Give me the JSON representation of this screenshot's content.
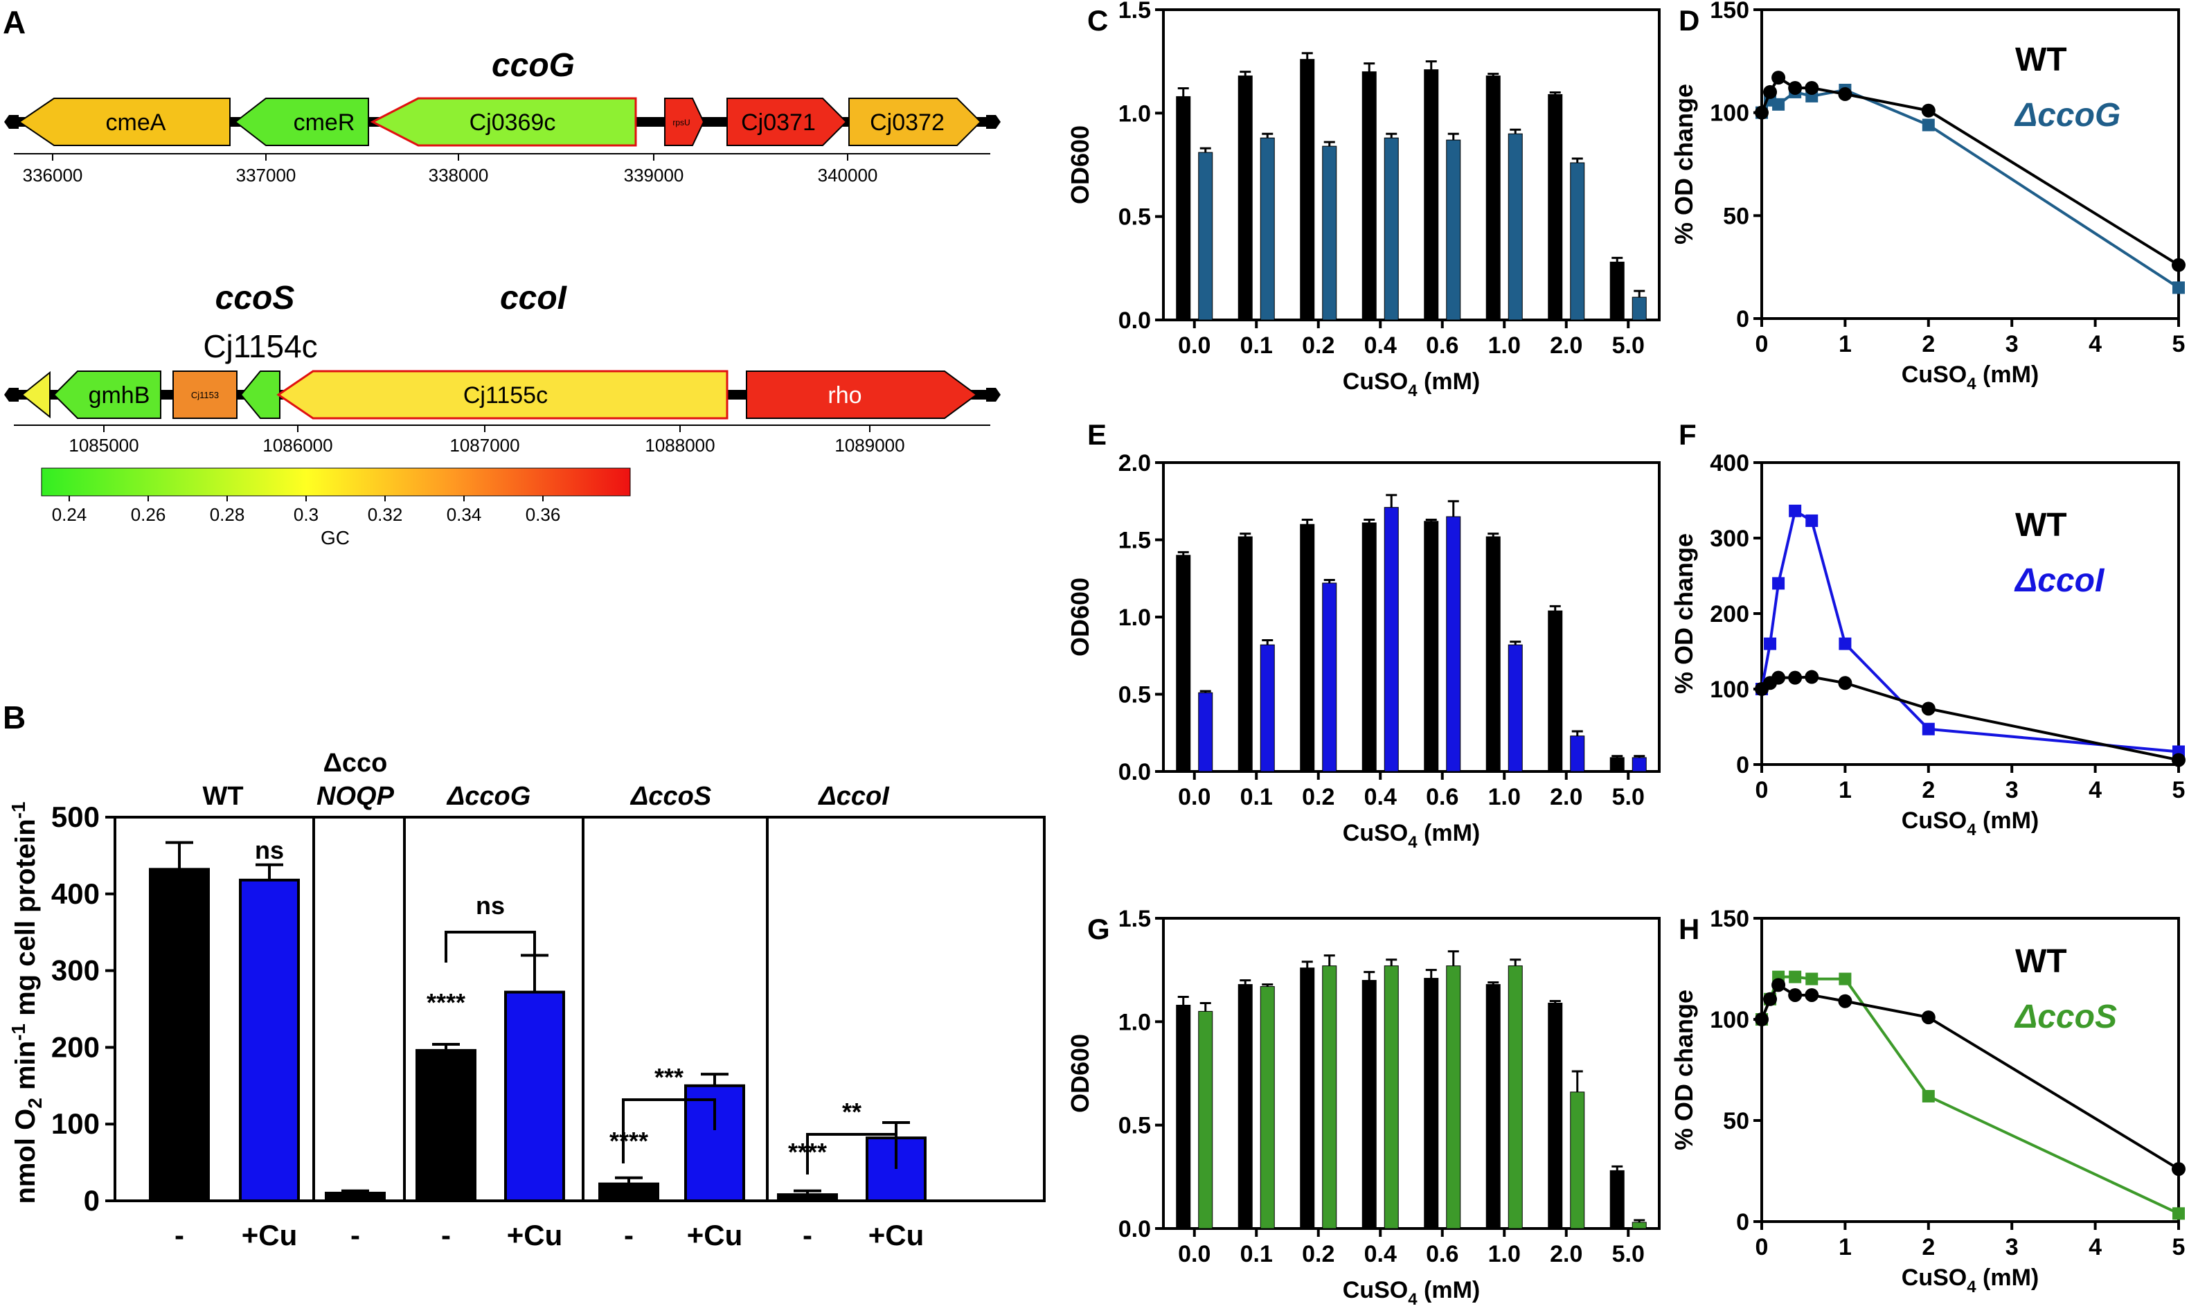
{
  "colors": {
    "black": "#000000",
    "cu_blue": "#1010ee",
    "ccoG_blue": "#1f5e8a",
    "ccoI_blue": "#1414e0",
    "ccoS_green": "#3d9a2a",
    "gc_low": "#33ee22",
    "gc_mid": "#ffff22",
    "gc_high": "#ee1111"
  },
  "panel_A": {
    "label": "A",
    "region1": {
      "title": "ccoG",
      "genes": [
        {
          "name": "cmeA",
          "color": "#f5c21a"
        },
        {
          "name": "cmeR",
          "color": "#5ee82b"
        },
        {
          "name": "Cj0369c",
          "color": "#8ef032"
        },
        {
          "name": "rpsU",
          "color": "#ee2a1a"
        },
        {
          "name": "Cj0371",
          "color": "#ee2a1a"
        },
        {
          "name": "Cj0372",
          "color": "#f5b820"
        }
      ],
      "ticks": [
        "336000",
        "337000",
        "338000",
        "339000",
        "340000"
      ]
    },
    "region2": {
      "titles": [
        "ccoS",
        "Cj1154c",
        "ccoI"
      ],
      "genes": [
        {
          "name": "",
          "color": "#f2f23a"
        },
        {
          "name": "gmhB",
          "color": "#5ee82b"
        },
        {
          "name": "Cj1153",
          "color": "#f08a2a"
        },
        {
          "name": "",
          "color": "#5ee82b"
        },
        {
          "name": "Cj1155c",
          "color": "#fbe33c"
        },
        {
          "name": "rho",
          "color": "#ee2a1a"
        }
      ],
      "ticks": [
        "1085000",
        "1086000",
        "1087000",
        "1088000",
        "1089000"
      ]
    },
    "gc_scale": {
      "ticks": [
        "0.24",
        "0.26",
        "0.28",
        "0.3",
        "0.32",
        "0.34",
        "0.36"
      ],
      "label": "GC"
    }
  },
  "panel_B": {
    "label": "B",
    "groups": [
      "WT",
      "Δcco",
      "NOQP",
      "ΔccoG",
      "ΔccoS",
      "ΔccoI"
    ],
    "xlabels": [
      "-",
      "+Cu",
      "-",
      "-",
      "+Cu",
      "-",
      "+Cu",
      "-",
      "+Cu"
    ],
    "significance": [
      "ns",
      "ns",
      "****",
      "***",
      "****",
      "**",
      "****"
    ],
    "ylabel_parts": [
      "nmol O",
      "2",
      " min",
      "-1",
      " mg cell protein",
      "-1"
    ]
  },
  "chart_data": [
    {
      "id": "B",
      "type": "bar",
      "categories": [
        "WT -",
        "WT +Cu",
        "ΔccoNOQP -",
        "ΔccoG -",
        "ΔccoG +Cu",
        "ΔccoS -",
        "ΔccoS +Cu",
        "ΔccoI -",
        "ΔccoI +Cu"
      ],
      "values": [
        432,
        418,
        10,
        196,
        272,
        22,
        150,
        8,
        82
      ],
      "errors": [
        35,
        20,
        3,
        8,
        48,
        8,
        15,
        5,
        20
      ],
      "ylim": [
        0,
        500
      ],
      "yticks": [
        "0",
        "100",
        "200",
        "300",
        "400",
        "500"
      ],
      "ylabel": "nmol O2 min-1 mg cell protein-1"
    },
    {
      "id": "C",
      "type": "bar",
      "label": "C",
      "categories": [
        "0.0",
        "0.1",
        "0.2",
        "0.4",
        "0.6",
        "1.0",
        "2.0",
        "5.0"
      ],
      "series": [
        {
          "name": "WT",
          "values": [
            1.08,
            1.18,
            1.26,
            1.2,
            1.21,
            1.18,
            1.09,
            0.28
          ],
          "errors": [
            0.04,
            0.02,
            0.03,
            0.04,
            0.04,
            0.01,
            0.01,
            0.02
          ]
        },
        {
          "name": "ΔccoG",
          "values": [
            0.81,
            0.88,
            0.84,
            0.88,
            0.87,
            0.9,
            0.76,
            0.11
          ],
          "errors": [
            0.02,
            0.02,
            0.02,
            0.02,
            0.03,
            0.02,
            0.02,
            0.03
          ]
        }
      ],
      "ylim": [
        0,
        1.5
      ],
      "yticks": [
        "0.0",
        "0.5",
        "1.0",
        "1.5"
      ],
      "ylabel": "OD600",
      "xlabel_main": "CuSO",
      "xlabel_sub": "4",
      "xlabel_unit": " (mM)"
    },
    {
      "id": "D",
      "type": "line",
      "label": "D",
      "x": [
        0,
        0.1,
        0.2,
        0.4,
        0.6,
        1,
        2,
        5
      ],
      "series": [
        {
          "name": "WT",
          "values": [
            100,
            110,
            117,
            112,
            112,
            109,
            101,
            26
          ]
        },
        {
          "name": "ΔccoG",
          "values": [
            100,
            106,
            104,
            110,
            108,
            111,
            94,
            15
          ]
        }
      ],
      "xlim": [
        0,
        5
      ],
      "ylim": [
        0,
        150
      ],
      "xticks": [
        "0",
        "1",
        "2",
        "3",
        "4",
        "5"
      ],
      "yticks": [
        "0",
        "50",
        "100",
        "150"
      ],
      "ylabel": "% OD  change",
      "legend": [
        "WT",
        "ΔccoG"
      ],
      "xlabel_main": "CuSO",
      "xlabel_sub": "4",
      "xlabel_unit": " (mM)"
    },
    {
      "id": "E",
      "type": "bar",
      "label": "E",
      "categories": [
        "0.0",
        "0.1",
        "0.2",
        "0.4",
        "0.6",
        "1.0",
        "2.0",
        "5.0"
      ],
      "series": [
        {
          "name": "WT",
          "values": [
            1.4,
            1.52,
            1.6,
            1.61,
            1.62,
            1.52,
            1.04,
            0.09
          ],
          "errors": [
            0.02,
            0.02,
            0.03,
            0.02,
            0.01,
            0.02,
            0.03,
            0.01
          ]
        },
        {
          "name": "ΔccoI",
          "values": [
            0.51,
            0.82,
            1.22,
            1.71,
            1.65,
            0.82,
            0.23,
            0.09
          ],
          "errors": [
            0.01,
            0.03,
            0.02,
            0.08,
            0.1,
            0.02,
            0.03,
            0.01
          ]
        }
      ],
      "ylim": [
        0,
        2.0
      ],
      "yticks": [
        "0.0",
        "0.5",
        "1.0",
        "1.5",
        "2.0"
      ],
      "ylabel": "OD600",
      "xlabel_main": "CuSO",
      "xlabel_sub": "4",
      "xlabel_unit": " (mM)"
    },
    {
      "id": "F",
      "type": "line",
      "label": "F",
      "x": [
        0,
        0.1,
        0.2,
        0.4,
        0.6,
        1,
        2,
        5
      ],
      "series": [
        {
          "name": "WT",
          "values": [
            100,
            108,
            115,
            115,
            116,
            108,
            74,
            6
          ]
        },
        {
          "name": "ΔccoI",
          "values": [
            100,
            160,
            240,
            336,
            323,
            160,
            47,
            17
          ]
        }
      ],
      "xlim": [
        0,
        5
      ],
      "ylim": [
        0,
        400
      ],
      "xticks": [
        "0",
        "1",
        "2",
        "3",
        "4",
        "5"
      ],
      "yticks": [
        "0",
        "100",
        "200",
        "300",
        "400"
      ],
      "ylabel": "% OD  change",
      "legend": [
        "WT",
        "ΔccoI"
      ],
      "xlabel_main": "CuSO",
      "xlabel_sub": "4",
      "xlabel_unit": " (mM)"
    },
    {
      "id": "G",
      "type": "bar",
      "label": "G",
      "categories": [
        "0.0",
        "0.1",
        "0.2",
        "0.4",
        "0.6",
        "1.0",
        "2.0",
        "5.0"
      ],
      "series": [
        {
          "name": "WT",
          "values": [
            1.08,
            1.18,
            1.26,
            1.2,
            1.21,
            1.18,
            1.09,
            0.28
          ],
          "errors": [
            0.04,
            0.02,
            0.03,
            0.04,
            0.04,
            0.01,
            0.01,
            0.02
          ]
        },
        {
          "name": "ΔccoS",
          "values": [
            1.05,
            1.17,
            1.27,
            1.27,
            1.27,
            1.27,
            0.66,
            0.03
          ],
          "errors": [
            0.04,
            0.01,
            0.05,
            0.03,
            0.07,
            0.03,
            0.1,
            0.01
          ]
        }
      ],
      "ylim": [
        0,
        1.5
      ],
      "yticks": [
        "0.0",
        "0.5",
        "1.0",
        "1.5"
      ],
      "ylabel": "OD600",
      "xlabel_main": "CuSO",
      "xlabel_sub": "4",
      "xlabel_unit": " (mM)"
    },
    {
      "id": "H",
      "type": "line",
      "label": "H",
      "x": [
        0,
        0.1,
        0.2,
        0.4,
        0.6,
        1,
        2,
        5
      ],
      "series": [
        {
          "name": "WT",
          "values": [
            100,
            110,
            117,
            112,
            112,
            109,
            101,
            26
          ]
        },
        {
          "name": "ΔccoS",
          "values": [
            100,
            110,
            121,
            121,
            120,
            120,
            62,
            4
          ]
        }
      ],
      "xlim": [
        0,
        5
      ],
      "ylim": [
        0,
        150
      ],
      "xticks": [
        "0",
        "1",
        "2",
        "3",
        "4",
        "5"
      ],
      "yticks": [
        "0",
        "50",
        "100",
        "150"
      ],
      "ylabel": "% OD  change",
      "legend": [
        "WT",
        "ΔccoS"
      ],
      "xlabel_main": "CuSO",
      "xlabel_sub": "4",
      "xlabel_unit": " (mM)"
    }
  ]
}
